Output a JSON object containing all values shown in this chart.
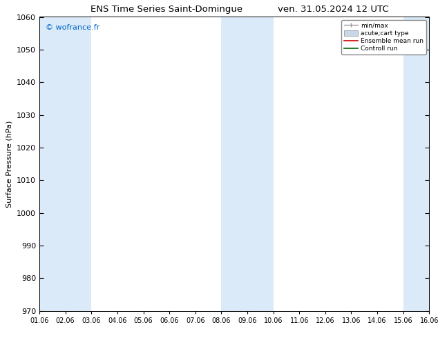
{
  "title_left": "ENS Time Series Saint-Domingue",
  "title_right": "ven. 31.05.2024 12 UTC",
  "ylabel": "Surface Pressure (hPa)",
  "ylim": [
    970,
    1060
  ],
  "yticks": [
    970,
    980,
    990,
    1000,
    1010,
    1020,
    1030,
    1040,
    1050,
    1060
  ],
  "xtick_labels": [
    "01.06",
    "02.06",
    "03.06",
    "04.06",
    "05.06",
    "06.06",
    "07.06",
    "08.06",
    "09.06",
    "10.06",
    "11.06",
    "12.06",
    "13.06",
    "14.06",
    "15.06",
    "16.06"
  ],
  "copyright": "© wofrance.fr",
  "copyright_color": "#0066cc",
  "band_color": "#daeaf8",
  "bg_color": "#ffffff",
  "plot_bg_color": "#ffffff",
  "legend_items": [
    "min/max",
    "acute;cart type",
    "Ensemble mean run",
    "Controll run"
  ],
  "shaded_bands": [
    {
      "xstart": 0,
      "xend": 2
    },
    {
      "xstart": 7,
      "xend": 9
    },
    {
      "xstart": 14,
      "xend": 15
    }
  ]
}
